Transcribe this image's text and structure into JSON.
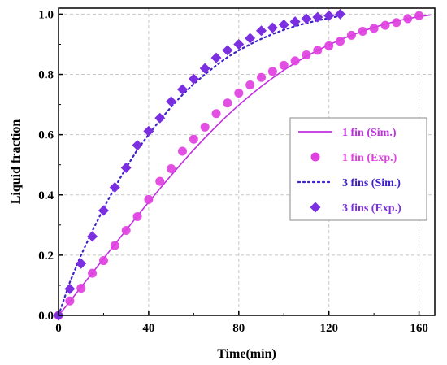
{
  "chart_data": {
    "type": "scatter",
    "title": "",
    "xlabel": "Time(min)",
    "ylabel": "Liquid fraction",
    "xlim": [
      0,
      167
    ],
    "ylim": [
      0,
      1.02
    ],
    "xticks": [
      0,
      40,
      80,
      120,
      160
    ],
    "yticks": [
      0.0,
      0.2,
      0.4,
      0.6,
      0.8,
      1.0
    ],
    "xtick_labels": [
      "0",
      "40",
      "80",
      "120",
      "160"
    ],
    "ytick_labels": [
      "0.0",
      "0.2",
      "0.4",
      "0.6",
      "0.8",
      "1.0"
    ],
    "grid": true,
    "legend_position": "center-right",
    "series": [
      {
        "name": "1 fin (Sim.)",
        "kind": "line",
        "style": "solid",
        "color": "#c030e0",
        "x": [
          0,
          5,
          10,
          15,
          20,
          25,
          30,
          35,
          40,
          45,
          50,
          55,
          60,
          65,
          70,
          75,
          80,
          85,
          90,
          95,
          100,
          105,
          110,
          115,
          120,
          125,
          130,
          135,
          140,
          145,
          150,
          155,
          160,
          165
        ],
        "y": [
          0.0,
          0.046,
          0.094,
          0.141,
          0.188,
          0.236,
          0.283,
          0.33,
          0.376,
          0.421,
          0.465,
          0.508,
          0.55,
          0.59,
          0.628,
          0.664,
          0.698,
          0.73,
          0.76,
          0.788,
          0.814,
          0.838,
          0.86,
          0.88,
          0.898,
          0.915,
          0.93,
          0.944,
          0.956,
          0.967,
          0.977,
          0.985,
          0.992,
          0.997
        ]
      },
      {
        "name": "1 fin (Exp.)",
        "kind": "scatter",
        "marker": "circle",
        "color": "#e040e0",
        "x": [
          0,
          5,
          10,
          15,
          20,
          25,
          30,
          35,
          40,
          45,
          50,
          55,
          60,
          65,
          70,
          75,
          80,
          85,
          90,
          95,
          100,
          105,
          110,
          115,
          120,
          125,
          130,
          135,
          140,
          145,
          150,
          155,
          160
        ],
        "y": [
          0.0,
          0.048,
          0.09,
          0.14,
          0.182,
          0.232,
          0.282,
          0.328,
          0.385,
          0.445,
          0.487,
          0.545,
          0.585,
          0.625,
          0.67,
          0.705,
          0.738,
          0.765,
          0.79,
          0.81,
          0.83,
          0.845,
          0.865,
          0.88,
          0.895,
          0.91,
          0.93,
          0.943,
          0.953,
          0.963,
          0.972,
          0.985,
          0.995
        ]
      },
      {
        "name": "3 fins (Sim.)",
        "kind": "line",
        "style": "dotted",
        "color": "#4020c8",
        "x": [
          0,
          5,
          10,
          15,
          20,
          25,
          30,
          35,
          40,
          45,
          50,
          55,
          60,
          65,
          70,
          75,
          80,
          85,
          90,
          95,
          100,
          105,
          110,
          115,
          120,
          125
        ],
        "y": [
          0.0,
          0.11,
          0.2,
          0.28,
          0.355,
          0.425,
          0.49,
          0.55,
          0.6,
          0.648,
          0.692,
          0.732,
          0.768,
          0.8,
          0.83,
          0.857,
          0.88,
          0.9,
          0.918,
          0.934,
          0.948,
          0.96,
          0.97,
          0.979,
          0.987,
          0.994
        ]
      },
      {
        "name": "3 fins (Exp.)",
        "kind": "scatter",
        "marker": "diamond",
        "color": "#7b2fe0",
        "x": [
          0,
          5,
          10,
          15,
          20,
          25,
          30,
          35,
          40,
          45,
          50,
          55,
          60,
          65,
          70,
          75,
          80,
          85,
          90,
          95,
          100,
          105,
          110,
          115,
          120,
          125
        ],
        "y": [
          0.0,
          0.088,
          0.172,
          0.262,
          0.348,
          0.425,
          0.49,
          0.565,
          0.612,
          0.655,
          0.71,
          0.75,
          0.785,
          0.82,
          0.855,
          0.88,
          0.9,
          0.92,
          0.945,
          0.955,
          0.965,
          0.975,
          0.985,
          0.99,
          0.995,
          1.0
        ]
      }
    ]
  }
}
